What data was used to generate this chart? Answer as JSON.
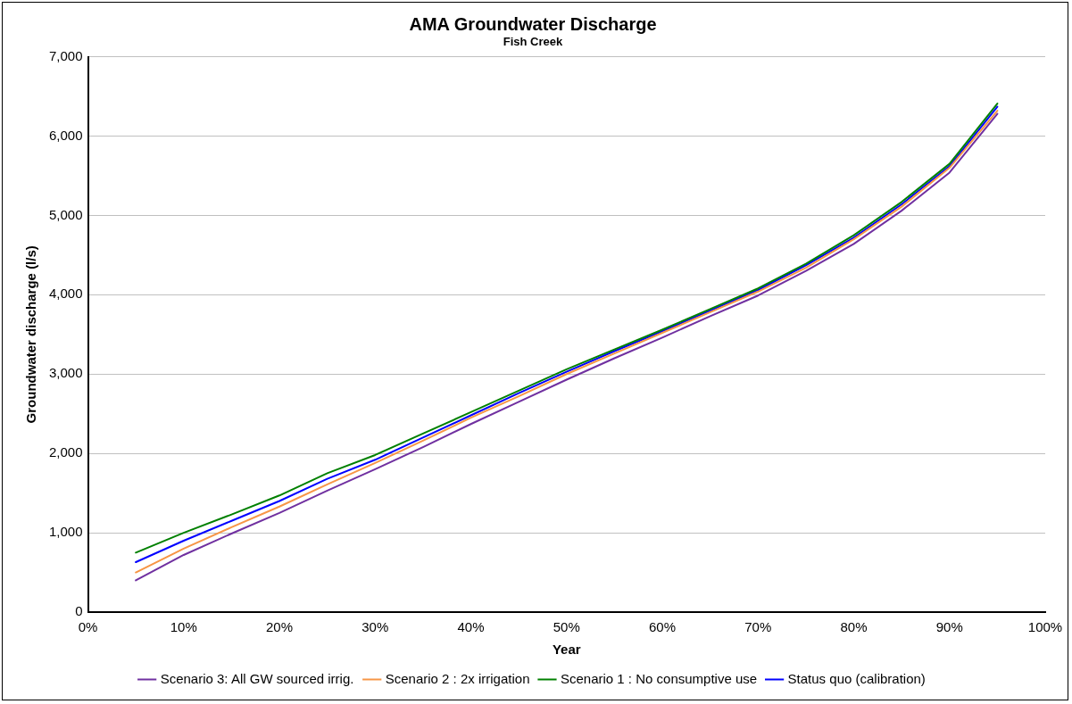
{
  "chart_data": {
    "type": "line",
    "title": "AMA Groundwater Discharge",
    "subtitle": "Fish Creek",
    "xlabel": "Year",
    "ylabel": "Groundwater discharge (l/s)",
    "x": [
      5,
      10,
      15,
      20,
      25,
      30,
      35,
      40,
      45,
      50,
      55,
      60,
      65,
      70,
      75,
      80,
      85,
      90,
      95
    ],
    "series": [
      {
        "name": "Scenario 3: All GW sourced irrig.",
        "color": "#7030a0",
        "values": [
          400,
          720,
          990,
          1250,
          1530,
          1800,
          2080,
          2370,
          2650,
          2930,
          3200,
          3460,
          3730,
          3990,
          4300,
          4640,
          5060,
          5540,
          6280
        ]
      },
      {
        "name": "Scenario 2 : 2x irrigation",
        "color": "#f79646",
        "values": [
          500,
          800,
          1070,
          1330,
          1610,
          1880,
          2160,
          2450,
          2720,
          3000,
          3260,
          3520,
          3780,
          4040,
          4340,
          4700,
          5110,
          5600,
          6320
        ]
      },
      {
        "name": "Scenario 1 : No consumptive use",
        "color": "#008000",
        "values": [
          750,
          1000,
          1230,
          1470,
          1750,
          1980,
          2250,
          2520,
          2790,
          3060,
          3310,
          3560,
          3820,
          4080,
          4390,
          4750,
          5170,
          5650,
          6410
        ]
      },
      {
        "name": "Status quo (calibration)",
        "color": "#0000ff",
        "values": [
          630,
          900,
          1150,
          1400,
          1680,
          1920,
          2200,
          2480,
          2760,
          3030,
          3290,
          3540,
          3800,
          4060,
          4370,
          4720,
          5140,
          5620,
          6370
        ]
      }
    ],
    "xlim": [
      0,
      100
    ],
    "xticks": [
      {
        "value": 0,
        "label": "0%"
      },
      {
        "value": 10,
        "label": "10%"
      },
      {
        "value": 20,
        "label": "20%"
      },
      {
        "value": 30,
        "label": "30%"
      },
      {
        "value": 40,
        "label": "40%"
      },
      {
        "value": 50,
        "label": "50%"
      },
      {
        "value": 60,
        "label": "60%"
      },
      {
        "value": 70,
        "label": "70%"
      },
      {
        "value": 80,
        "label": "80%"
      },
      {
        "value": 90,
        "label": "90%"
      },
      {
        "value": 100,
        "label": "100%"
      }
    ],
    "ylim": [
      0,
      7000
    ],
    "yticks": [
      0,
      {
        "value": 1000,
        "label": "1,000"
      },
      {
        "value": 2000,
        "label": "2,000"
      },
      {
        "value": 3000,
        "label": "3,000"
      },
      {
        "value": 4000,
        "label": "4,000"
      },
      {
        "value": 5000,
        "label": "5,000"
      },
      {
        "value": 6000,
        "label": "6,000"
      },
      {
        "value": 7000,
        "label": "7,000"
      }
    ],
    "grid": "y",
    "legend": "bottom",
    "marker": "none",
    "line_style": "solid"
  }
}
